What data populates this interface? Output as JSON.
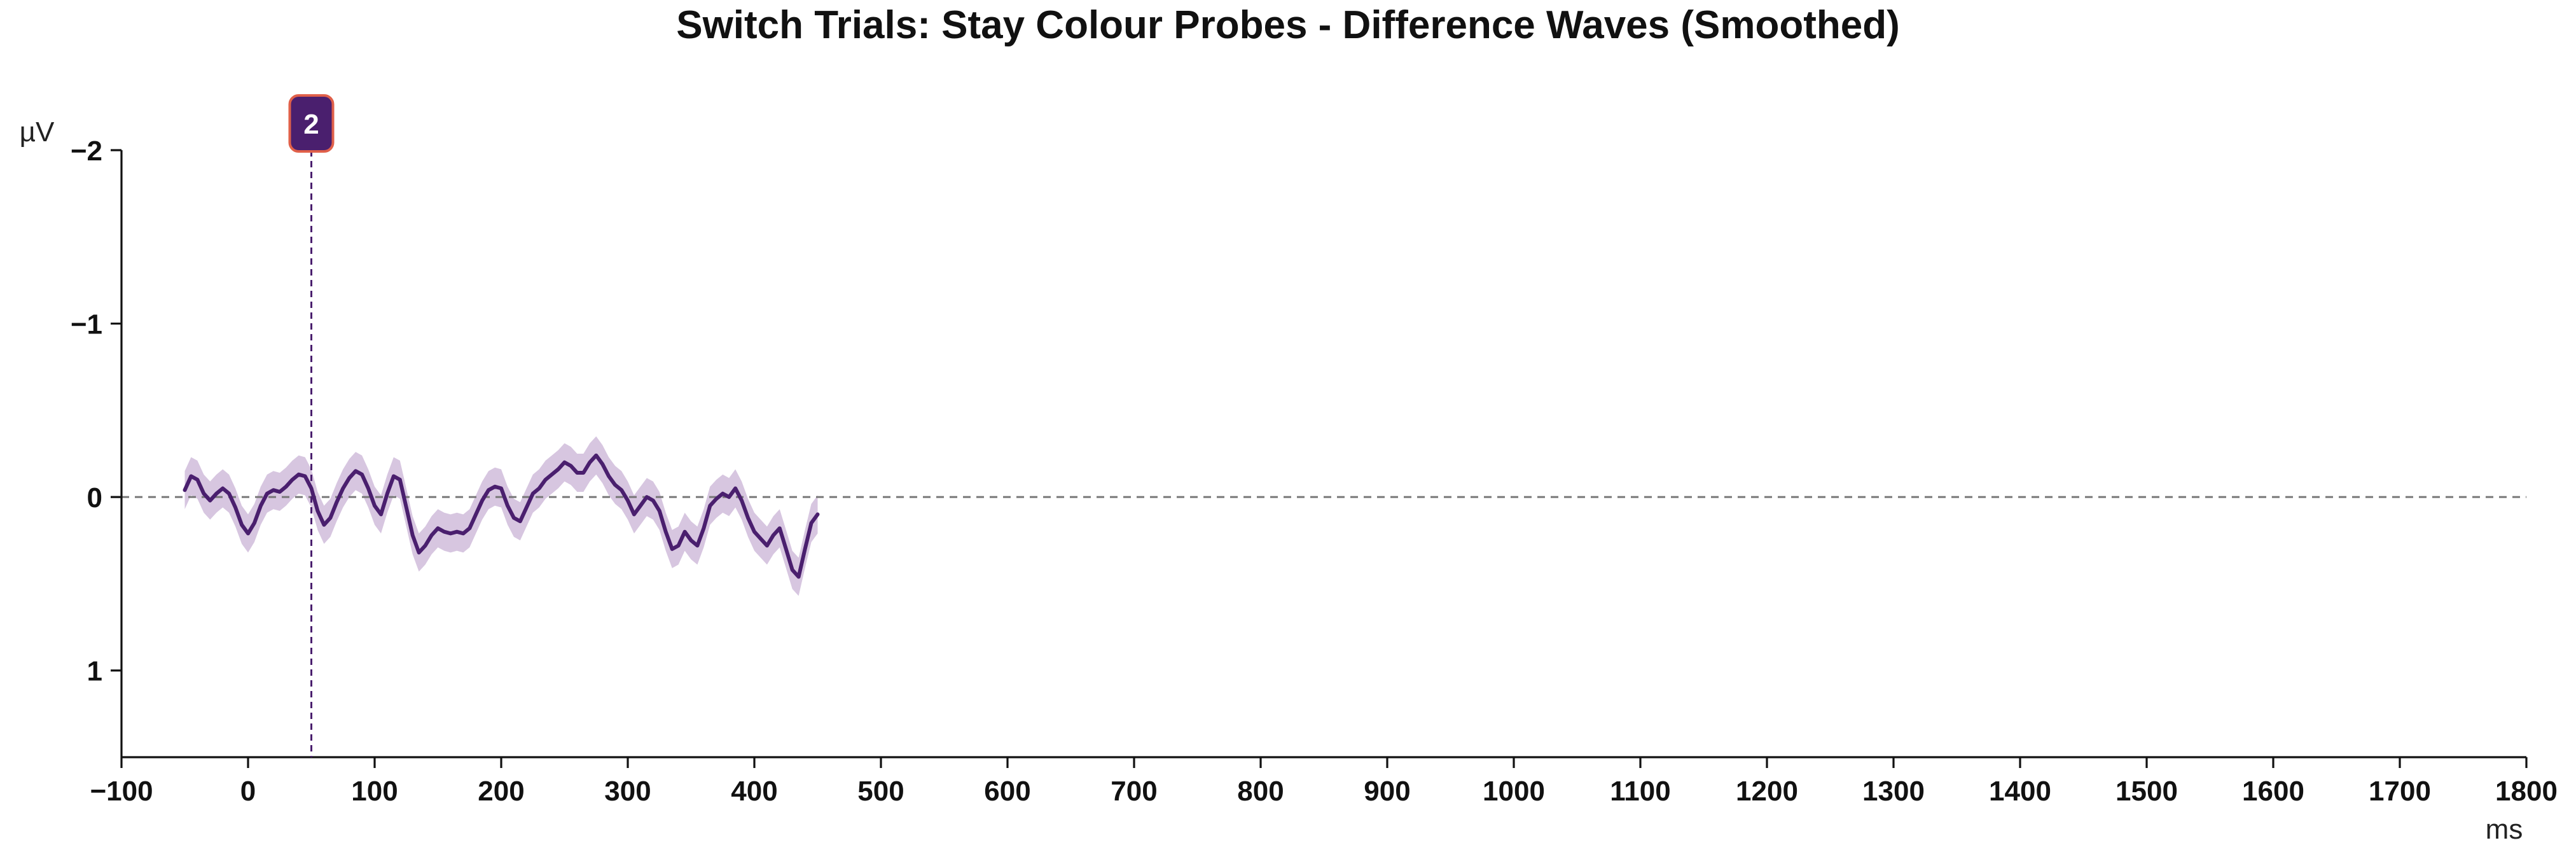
{
  "chart_data": {
    "type": "line",
    "title": "Switch Trials: Stay Colour Probes - Difference Waves (Smoothed)",
    "xlabel": "ms",
    "ylabel": "µV",
    "xlim": [
      -100,
      1800
    ],
    "ylim": [
      -2,
      1.5
    ],
    "y_inverted": true,
    "x_ticks": [
      -100,
      0,
      100,
      200,
      300,
      400,
      500,
      600,
      700,
      800,
      900,
      1000,
      1100,
      1200,
      1300,
      1400,
      1500,
      1600,
      1700,
      1800
    ],
    "x_tick_labels": [
      "−100",
      "0",
      "100",
      "200",
      "300",
      "400",
      "500",
      "600",
      "700",
      "800",
      "900",
      "1000",
      "1100",
      "1200",
      "1300",
      "1400",
      "1500",
      "1600",
      "1700",
      "1800"
    ],
    "y_ticks": [
      -2,
      -1,
      0,
      1
    ],
    "y_tick_labels": [
      "−2",
      "−1",
      "0",
      "1"
    ],
    "grid": false,
    "zero_line": {
      "y": 0,
      "style": "dashed",
      "color": "#777777"
    },
    "marker": {
      "x": 50,
      "label": "2",
      "color": "#4a1f6e",
      "border_color": "#e0604a"
    },
    "colors": {
      "line": "#4a1f6e",
      "band": "#c9b3d6",
      "axis": "#111111"
    },
    "series": [
      {
        "x": [
          -50,
          -45,
          -40,
          -35,
          -30,
          -25,
          -20,
          -15,
          -10,
          -5,
          0,
          5,
          10,
          15,
          20,
          25,
          30,
          35,
          40,
          45,
          50,
          55,
          60,
          65,
          70,
          75,
          80,
          85,
          90,
          95,
          100,
          105,
          110,
          115,
          120,
          125,
          130,
          135,
          140,
          145,
          150,
          155,
          160,
          165,
          170,
          175,
          180,
          185,
          190,
          195,
          200,
          205,
          210,
          215,
          220,
          225,
          230,
          235,
          240,
          245,
          250,
          255,
          260,
          265,
          270,
          275,
          280,
          285,
          290,
          295,
          300,
          305,
          310,
          315,
          320,
          325,
          330,
          335,
          340,
          345,
          350,
          355,
          360,
          365,
          370,
          375,
          380,
          385,
          390,
          395,
          400,
          405,
          410,
          415,
          420,
          425,
          430,
          435,
          440,
          445,
          450
        ],
        "values": [
          -0.04,
          -0.12,
          -0.1,
          -0.02,
          0.02,
          -0.02,
          -0.05,
          -0.02,
          0.06,
          0.16,
          0.21,
          0.15,
          0.05,
          -0.02,
          -0.04,
          -0.03,
          -0.06,
          -0.1,
          -0.13,
          -0.12,
          -0.05,
          0.08,
          0.16,
          0.12,
          0.03,
          -0.05,
          -0.11,
          -0.15,
          -0.13,
          -0.05,
          0.05,
          0.1,
          -0.02,
          -0.12,
          -0.1,
          0.06,
          0.22,
          0.32,
          0.28,
          0.22,
          0.18,
          0.2,
          0.21,
          0.2,
          0.21,
          0.18,
          0.1,
          0.02,
          -0.04,
          -0.06,
          -0.05,
          0.05,
          0.12,
          0.14,
          0.06,
          -0.02,
          -0.05,
          -0.1,
          -0.13,
          -0.16,
          -0.2,
          -0.18,
          -0.14,
          -0.14,
          -0.2,
          -0.24,
          -0.19,
          -0.12,
          -0.07,
          -0.04,
          0.02,
          0.1,
          0.05,
          0.0,
          0.02,
          0.08,
          0.2,
          0.3,
          0.28,
          0.2,
          0.25,
          0.28,
          0.18,
          0.05,
          0.01,
          -0.02,
          0.0,
          -0.05,
          0.02,
          0.12,
          0.2,
          0.24,
          0.28,
          0.22,
          0.18,
          0.3,
          0.42,
          0.46,
          0.3,
          0.15,
          0.1
        ],
        "ci_halfwidth": 0.11
      }
    ]
  }
}
